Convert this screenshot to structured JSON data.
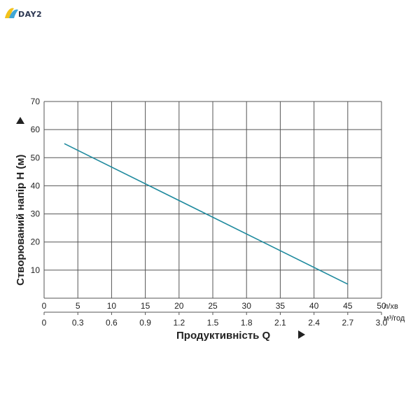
{
  "brand": {
    "logo_text": "DAY2"
  },
  "colors": {
    "line": "#1f8a9e",
    "grid": "#555555",
    "text": "#222222"
  },
  "chart_data": {
    "type": "line",
    "ylabel": "Створюваний напір H (м)",
    "xlabel": "Продуктивність Q",
    "x_unit": "л/хв",
    "x2_unit": "м³/год",
    "xlim": [
      0,
      50
    ],
    "ylim": [
      0,
      70
    ],
    "x_ticks": [
      "0",
      "5",
      "10",
      "15",
      "20",
      "25",
      "30",
      "35",
      "40",
      "45",
      "50"
    ],
    "x2_ticks": [
      "0",
      "0.3",
      "0.6",
      "0.9",
      "1.2",
      "1.5",
      "1.8",
      "2.1",
      "2.4",
      "2.7",
      "3.0"
    ],
    "y_ticks": [
      "10",
      "20",
      "30",
      "40",
      "50",
      "60",
      "70"
    ],
    "series": [
      {
        "x": [
          3,
          45
        ],
        "y": [
          55,
          5
        ]
      }
    ],
    "grid": true
  }
}
